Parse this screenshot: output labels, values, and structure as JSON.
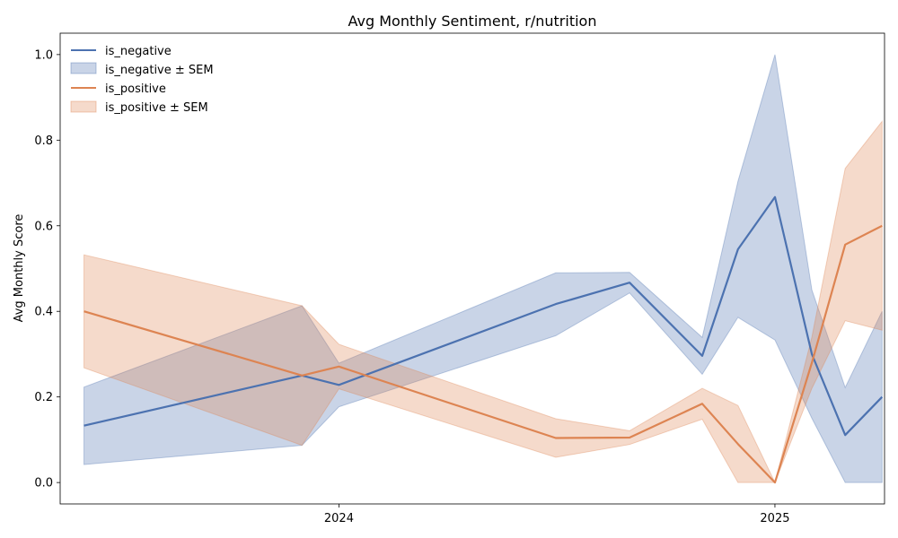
{
  "chart_data": {
    "type": "line",
    "title": "Avg Monthly Sentiment, r/nutrition",
    "xlabel": "",
    "ylabel": "Avg Monthly Score",
    "x_ticks": [
      "2024",
      "2025"
    ],
    "y_ticks": [
      "0.0",
      "0.2",
      "0.4",
      "0.6",
      "0.8",
      "1.0"
    ],
    "ylim": [
      -0.05,
      1.05
    ],
    "xlim": [
      "2023-05-12",
      "2025-04-03"
    ],
    "grid": false,
    "legend": {
      "placement": "top-left",
      "frame": false
    },
    "x": [
      "2023-06-01",
      "2023-12-01",
      "2024-01-01",
      "2024-07-01",
      "2024-09-01",
      "2024-11-01",
      "2024-12-01",
      "2025-01-01",
      "2025-02-01",
      "2025-03-01",
      "2025-04-01"
    ],
    "series": [
      {
        "name": "is_negative",
        "color": "#4c72b0",
        "values": [
          0.133,
          0.25,
          0.228,
          0.417,
          0.467,
          0.296,
          0.545,
          0.667,
          0.3,
          0.111,
          0.2
        ],
        "band_name": "is_negative ± SEM",
        "band_lower": [
          0.042,
          0.087,
          0.177,
          0.343,
          0.443,
          0.253,
          0.386,
          0.333,
          0.15,
          0.0,
          0.0
        ],
        "band_upper": [
          0.223,
          0.413,
          0.279,
          0.49,
          0.491,
          0.339,
          0.704,
          1.0,
          0.45,
          0.222,
          0.4
        ]
      },
      {
        "name": "is_positive",
        "color": "#dd8452",
        "values": [
          0.4,
          0.25,
          0.271,
          0.104,
          0.105,
          0.184,
          0.09,
          0.0,
          0.28,
          0.556,
          0.6
        ],
        "band_name": "is_positive ± SEM",
        "band_lower": [
          0.268,
          0.087,
          0.219,
          0.059,
          0.089,
          0.148,
          0.0,
          0.0,
          0.22,
          0.378,
          0.356
        ],
        "band_upper": [
          0.532,
          0.413,
          0.323,
          0.149,
          0.121,
          0.22,
          0.18,
          0.0,
          0.34,
          0.734,
          0.844
        ]
      }
    ]
  }
}
